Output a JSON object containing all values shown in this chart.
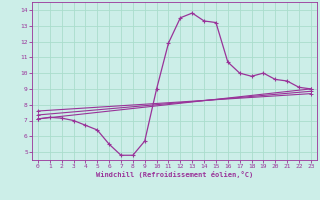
{
  "xlabel": "Windchill (Refroidissement éolien,°C)",
  "background_color": "#cceee8",
  "line_color": "#993399",
  "grid_color": "#aaddcc",
  "xlim": [
    -0.5,
    23.5
  ],
  "ylim": [
    4.5,
    14.5
  ],
  "yticks": [
    5,
    6,
    7,
    8,
    9,
    10,
    11,
    12,
    13,
    14
  ],
  "xticks": [
    0,
    1,
    2,
    3,
    4,
    5,
    6,
    7,
    8,
    9,
    10,
    11,
    12,
    13,
    14,
    15,
    16,
    17,
    18,
    19,
    20,
    21,
    22,
    23
  ],
  "main_series": [
    [
      0,
      7.1
    ],
    [
      1,
      7.2
    ],
    [
      2,
      7.15
    ],
    [
      3,
      7.0
    ],
    [
      4,
      6.7
    ],
    [
      5,
      6.4
    ],
    [
      6,
      5.5
    ],
    [
      7,
      4.8
    ],
    [
      8,
      4.8
    ],
    [
      9,
      5.7
    ],
    [
      10,
      9.0
    ],
    [
      11,
      11.9
    ],
    [
      12,
      13.5
    ],
    [
      13,
      13.8
    ],
    [
      14,
      13.3
    ],
    [
      15,
      13.2
    ],
    [
      16,
      10.7
    ],
    [
      17,
      10.0
    ],
    [
      18,
      9.8
    ],
    [
      19,
      10.0
    ],
    [
      20,
      9.6
    ],
    [
      21,
      9.5
    ],
    [
      22,
      9.1
    ],
    [
      23,
      9.0
    ]
  ],
  "line1": [
    [
      0,
      7.1
    ],
    [
      23,
      9.0
    ]
  ],
  "line2": [
    [
      0,
      7.35
    ],
    [
      23,
      8.85
    ]
  ],
  "line3": [
    [
      0,
      7.6
    ],
    [
      23,
      8.7
    ]
  ]
}
